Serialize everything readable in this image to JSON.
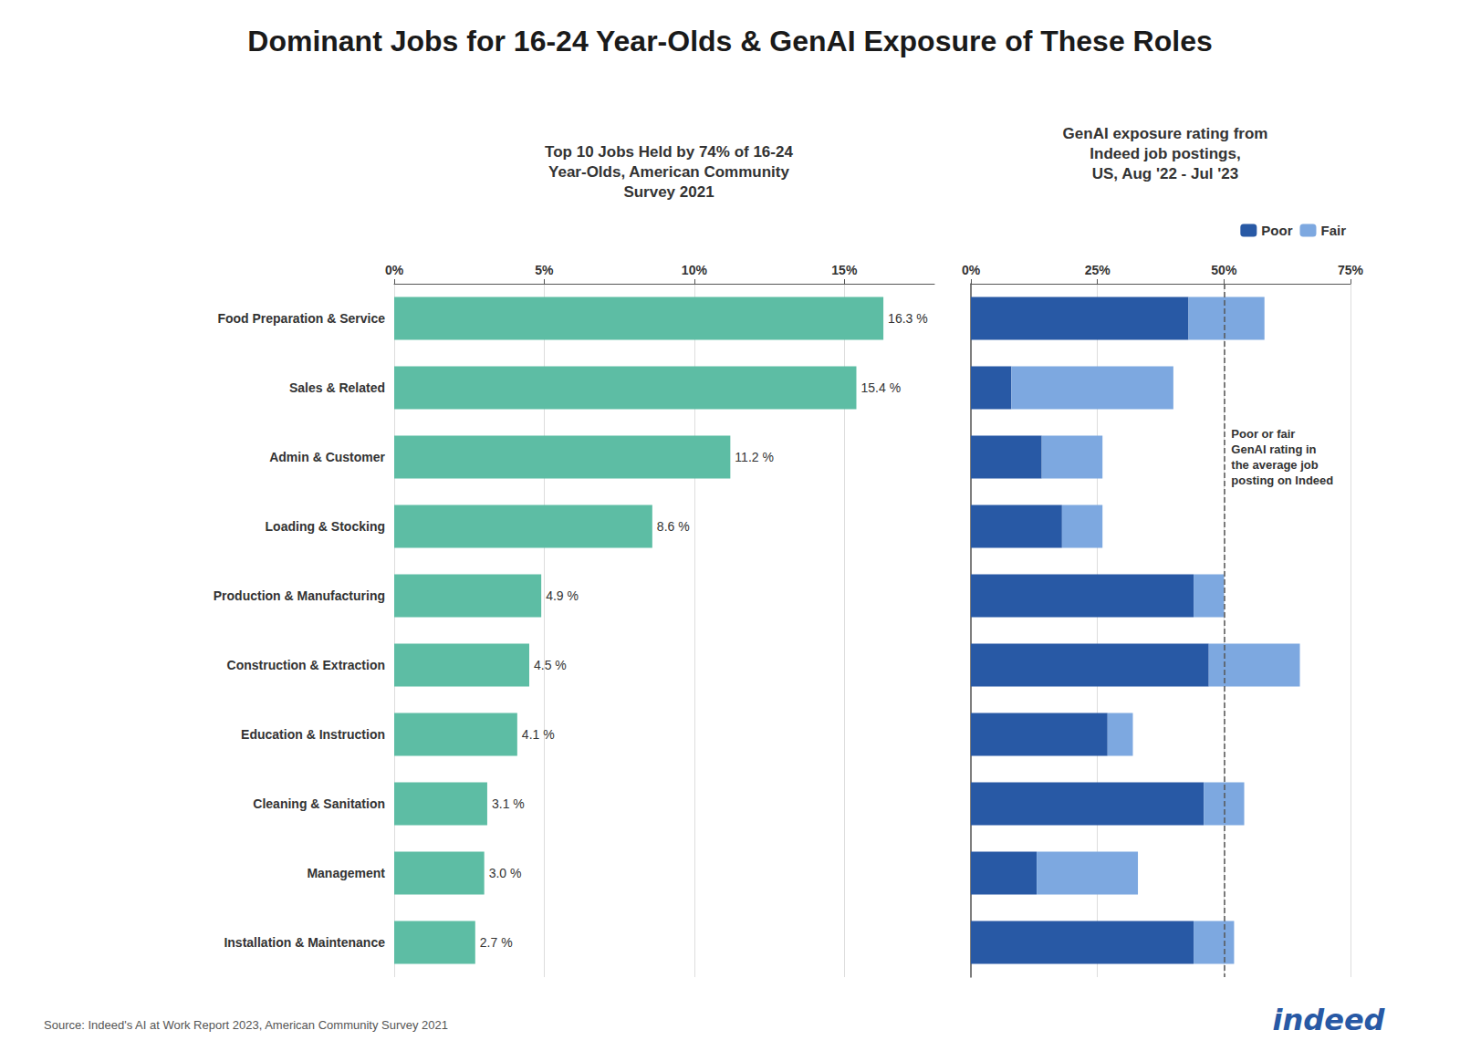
{
  "chart_data": [
    {
      "type": "bar",
      "title": "Dominant Jobs for 16-24 Year-Olds & GenAI Exposure of These Roles",
      "subtitle": "Top 10 Jobs Held by 74% of 16-24\nYear-Olds, American Community\nSurvey 2021",
      "annotations": [
        "Source: Indeed's AI at Work Report 2023, American Community Survey 2021",
        "indeed"
      ],
      "orientation": "horizontal",
      "categories": [
        "Food Preparation & Service",
        "Sales & Related",
        "Admin & Customer",
        "Loading & Stocking",
        "Production & Manufacturing",
        "Construction & Extraction",
        "Education & Instruction",
        "Cleaning & Sanitation",
        "Management",
        "Installation & Maintenance"
      ],
      "values": [
        16.3,
        15.4,
        11.2,
        8.6,
        4.9,
        4.5,
        4.1,
        3.1,
        3.0,
        2.7
      ],
      "value_labels": [
        "16.3 %",
        "15.4 %",
        "11.2 %",
        "8.6 %",
        "4.9 %",
        "4.5 %",
        "4.1 %",
        "3.1 %",
        "3.0 %",
        "2.7 %"
      ],
      "data_labels": true,
      "color": "#5dbda4",
      "xlim": [
        0,
        18
      ],
      "xticks": [
        {
          "value": 0,
          "label": "0%"
        },
        {
          "value": 5,
          "label": "5%"
        },
        {
          "value": 10,
          "label": "10%"
        },
        {
          "value": 15,
          "label": "15%"
        }
      ],
      "grid": true
    },
    {
      "type": "bar",
      "subtitle": "GenAI exposure rating from\nIndeed job postings,\nUS, Aug '22 - Jul '23",
      "annotations": [
        "Poor or fair\nGenAI rating in\nthe average job\nposting on Indeed"
      ],
      "orientation": "horizontal",
      "stacked": true,
      "categories": [
        "Food Preparation & Service",
        "Sales & Related",
        "Admin & Customer",
        "Loading & Stocking",
        "Production & Manufacturing",
        "Construction & Extraction",
        "Education & Instruction",
        "Cleaning & Sanitation",
        "Management",
        "Installation & Maintenance"
      ],
      "series": [
        {
          "name": "Poor",
          "color": "#2859a5",
          "values": [
            43,
            8,
            14,
            18,
            44,
            47,
            27,
            46,
            13,
            44
          ]
        },
        {
          "name": "Fair",
          "color": "#7da8e0",
          "values": [
            15,
            32,
            12,
            8,
            6,
            18,
            5,
            8,
            20,
            8
          ]
        }
      ],
      "xlim": [
        0,
        75
      ],
      "xticks": [
        {
          "value": 0,
          "label": "0%"
        },
        {
          "value": 25,
          "label": "25%"
        },
        {
          "value": 50,
          "label": "50%"
        },
        {
          "value": 75,
          "label": "75%"
        }
      ],
      "reference_line": 50,
      "tick_labels": "x",
      "legend": "upper right",
      "grid": true
    }
  ]
}
